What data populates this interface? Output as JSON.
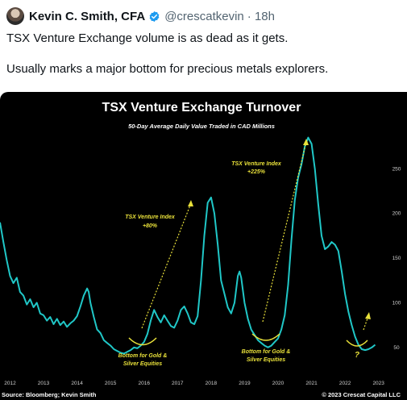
{
  "tweet": {
    "author": "Kevin C. Smith, CFA",
    "handle": "@crescatkevin",
    "time": "· 18h",
    "text_line1": "TSX Venture Exchange volume is as dead as it gets.",
    "text_line2": "Usually marks a major bottom for precious metals explorers."
  },
  "colors": {
    "line": "#20c7c7",
    "annotation": "#e8e03a",
    "background": "#000000",
    "verified": "#1d9bf0"
  },
  "chart_data": {
    "type": "line",
    "title": "TSX Venture Exchange Turnover",
    "subtitle": "50-Day Average Daily Value Traded in CAD Millions",
    "source": "Source: Bloomberg; Kevin Smith",
    "copyright": "© 2023 Crescat Capital LLC",
    "x_ticks": [
      "2012",
      "2013",
      "2014",
      "2015",
      "2016",
      "2017",
      "2018",
      "2019",
      "2020",
      "2021",
      "2022",
      "2023"
    ],
    "y_ticks": [
      "50",
      "100",
      "150",
      "200",
      "250"
    ],
    "xlim": [
      2011.7,
      2023.2
    ],
    "ylim": [
      20,
      300
    ],
    "grid": false,
    "series": [
      {
        "values": [
          [
            2011.7,
            190
          ],
          [
            2011.8,
            168
          ],
          [
            2011.9,
            148
          ],
          [
            2012.0,
            130
          ],
          [
            2012.1,
            122
          ],
          [
            2012.2,
            128
          ],
          [
            2012.3,
            112
          ],
          [
            2012.4,
            108
          ],
          [
            2012.5,
            98
          ],
          [
            2012.6,
            104
          ],
          [
            2012.7,
            95
          ],
          [
            2012.8,
            100
          ],
          [
            2012.9,
            88
          ],
          [
            2013.0,
            86
          ],
          [
            2013.1,
            80
          ],
          [
            2013.2,
            84
          ],
          [
            2013.3,
            76
          ],
          [
            2013.4,
            82
          ],
          [
            2013.5,
            75
          ],
          [
            2013.6,
            79
          ],
          [
            2013.7,
            73
          ],
          [
            2013.8,
            77
          ],
          [
            2013.9,
            80
          ],
          [
            2014.0,
            85
          ],
          [
            2014.1,
            96
          ],
          [
            2014.2,
            108
          ],
          [
            2014.3,
            116
          ],
          [
            2014.35,
            112
          ],
          [
            2014.4,
            100
          ],
          [
            2014.5,
            84
          ],
          [
            2014.6,
            70
          ],
          [
            2014.7,
            66
          ],
          [
            2014.8,
            58
          ],
          [
            2014.9,
            55
          ],
          [
            2015.0,
            52
          ],
          [
            2015.1,
            48
          ],
          [
            2015.2,
            46
          ],
          [
            2015.3,
            44
          ],
          [
            2015.4,
            43
          ],
          [
            2015.5,
            45
          ],
          [
            2015.6,
            47
          ],
          [
            2015.7,
            50
          ],
          [
            2015.8,
            49
          ],
          [
            2015.9,
            52
          ],
          [
            2016.0,
            56
          ],
          [
            2016.1,
            65
          ],
          [
            2016.2,
            80
          ],
          [
            2016.3,
            92
          ],
          [
            2016.4,
            84
          ],
          [
            2016.5,
            78
          ],
          [
            2016.6,
            86
          ],
          [
            2016.7,
            80
          ],
          [
            2016.8,
            74
          ],
          [
            2016.9,
            72
          ],
          [
            2017.0,
            80
          ],
          [
            2017.1,
            92
          ],
          [
            2017.2,
            96
          ],
          [
            2017.3,
            88
          ],
          [
            2017.4,
            78
          ],
          [
            2017.5,
            76
          ],
          [
            2017.6,
            85
          ],
          [
            2017.7,
            125
          ],
          [
            2017.8,
            175
          ],
          [
            2017.9,
            212
          ],
          [
            2018.0,
            218
          ],
          [
            2018.1,
            200
          ],
          [
            2018.2,
            165
          ],
          [
            2018.3,
            125
          ],
          [
            2018.4,
            110
          ],
          [
            2018.5,
            95
          ],
          [
            2018.6,
            88
          ],
          [
            2018.7,
            100
          ],
          [
            2018.8,
            130
          ],
          [
            2018.85,
            135
          ],
          [
            2018.9,
            128
          ],
          [
            2019.0,
            100
          ],
          [
            2019.1,
            82
          ],
          [
            2019.2,
            70
          ],
          [
            2019.3,
            64
          ],
          [
            2019.4,
            58
          ],
          [
            2019.5,
            55
          ],
          [
            2019.6,
            52
          ],
          [
            2019.7,
            50
          ],
          [
            2019.8,
            52
          ],
          [
            2019.9,
            56
          ],
          [
            2020.0,
            60
          ],
          [
            2020.1,
            70
          ],
          [
            2020.2,
            86
          ],
          [
            2020.3,
            120
          ],
          [
            2020.4,
            170
          ],
          [
            2020.5,
            215
          ],
          [
            2020.6,
            240
          ],
          [
            2020.7,
            255
          ],
          [
            2020.8,
            275
          ],
          [
            2020.9,
            285
          ],
          [
            2021.0,
            278
          ],
          [
            2021.1,
            250
          ],
          [
            2021.2,
            210
          ],
          [
            2021.3,
            175
          ],
          [
            2021.4,
            160
          ],
          [
            2021.5,
            163
          ],
          [
            2021.6,
            168
          ],
          [
            2021.7,
            165
          ],
          [
            2021.8,
            158
          ],
          [
            2021.9,
            135
          ],
          [
            2022.0,
            110
          ],
          [
            2022.1,
            90
          ],
          [
            2022.2,
            75
          ],
          [
            2022.3,
            62
          ],
          [
            2022.4,
            53
          ],
          [
            2022.5,
            48
          ],
          [
            2022.6,
            47
          ],
          [
            2022.7,
            48
          ],
          [
            2022.8,
            50
          ],
          [
            2022.9,
            53
          ]
        ]
      }
    ],
    "annotations": [
      {
        "text": "TSX Venture Index",
        "text2": "+80%"
      },
      {
        "text": "TSX Venture Index",
        "text2": "+225%"
      },
      {
        "text": "Bottom for Gold &",
        "text2": "Silver Equities"
      },
      {
        "text": "Bottom for Gold &",
        "text2": "Silver Equities"
      },
      {
        "text": "?"
      }
    ]
  }
}
